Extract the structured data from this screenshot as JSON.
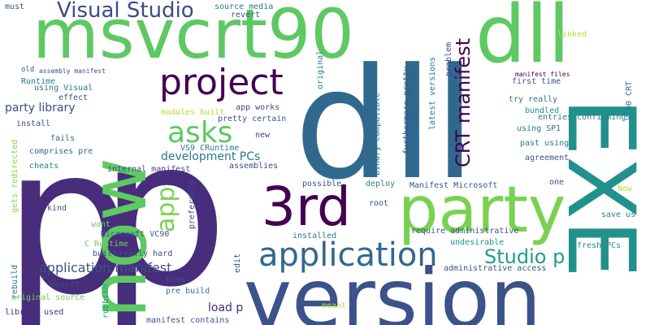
{
  "words": [
    {
      "text": "p",
      "color": "#472d7b"
    },
    {
      "text": "p",
      "color": "#472d7b"
    },
    {
      "text": "dll",
      "color": "#31688e"
    },
    {
      "text": "dll",
      "color": "#5ec962"
    },
    {
      "text": "version",
      "color": "#3b528b"
    },
    {
      "text": "msvcrt90",
      "color": "#5ec962"
    },
    {
      "text": "EXE",
      "color": "#21918c"
    },
    {
      "text": "party",
      "color": "#7ad151"
    },
    {
      "text": "now",
      "color": "#5ec962"
    },
    {
      "text": "project",
      "color": "#440154"
    },
    {
      "text": "3rd",
      "color": "#440154"
    },
    {
      "text": "application",
      "color": "#31688e"
    },
    {
      "text": "CRT manifest",
      "color": "#440154"
    },
    {
      "text": "Visual Studio",
      "color": "#3e4a89"
    },
    {
      "text": "asks",
      "color": "#5ec962"
    },
    {
      "text": "app",
      "color": "#7ad151"
    },
    {
      "text": "Studio p",
      "color": "#1f9e89"
    },
    {
      "text": "application manifest",
      "color": "#3b528b"
    },
    {
      "text": "development PCs",
      "color": "#2a788e"
    },
    {
      "text": "party library",
      "color": "#3e4a89"
    },
    {
      "text": "load p",
      "color": "#482878"
    },
    {
      "text": "must",
      "color": "#3b528b"
    },
    {
      "text": "Runtime",
      "color": "#2a788e"
    },
    {
      "text": "using Visual",
      "color": "#2a788e"
    },
    {
      "text": "effect",
      "color": "#3b528b"
    },
    {
      "text": "install",
      "color": "#3b528b"
    },
    {
      "text": "fails",
      "color": "#31688e"
    },
    {
      "text": "comprises pre",
      "color": "#31688e"
    },
    {
      "text": "cheats",
      "color": "#26828e"
    },
    {
      "text": "kind",
      "color": "#3b528b"
    },
    {
      "text": "want",
      "color": "#6ece58"
    },
    {
      "text": "rebuild",
      "color": "#2a788e"
    },
    {
      "text": "msvcrt",
      "color": "#3e4a89"
    },
    {
      "text": "original source",
      "color": "#6ece58"
    },
    {
      "text": "library used",
      "color": "#46327e"
    },
    {
      "text": "gets redirected",
      "color": "#86d549"
    },
    {
      "text": "old",
      "color": "#3b528b"
    },
    {
      "text": "assembly manifest",
      "color": "#3e4a89"
    },
    {
      "text": "source media",
      "color": "#2a788e"
    },
    {
      "text": "revert",
      "color": "#3b528b"
    },
    {
      "text": "original",
      "color": "#26828e"
    },
    {
      "text": "modules built",
      "color": "#b5de2b"
    },
    {
      "text": "app works",
      "color": "#3e4a89"
    },
    {
      "text": "pretty certain",
      "color": "#3b528b"
    },
    {
      "text": "new",
      "color": "#3e4a89"
    },
    {
      "text": "VS9 CRuntime",
      "color": "#2a788e"
    },
    {
      "text": "assemblies",
      "color": "#3e4a89"
    },
    {
      "text": "internal manifest",
      "color": "#3e4a89"
    },
    {
      "text": "Microsoft VC90",
      "color": "#3b528b"
    },
    {
      "text": "C Runtime",
      "color": "#6ece58"
    },
    {
      "text": "built",
      "color": "#3b528b"
    },
    {
      "text": "really hard",
      "color": "#3b528b"
    },
    {
      "text": "preferable",
      "color": "#3e4a89"
    },
    {
      "text": "rubbish",
      "color": "#1f9e89"
    },
    {
      "text": "edit",
      "color": "#3b528b"
    },
    {
      "text": "time",
      "color": "#3b528b"
    },
    {
      "text": "pre build",
      "color": "#2a788e"
    },
    {
      "text": "manifest contains",
      "color": "#3b528b"
    },
    {
      "text": "meant",
      "color": "#b5de2b"
    },
    {
      "text": "furthermore pretty",
      "color": "#3b528b"
    },
    {
      "text": "binary compatible",
      "color": "#2a788e"
    },
    {
      "text": "latest versions",
      "color": "#2a788e"
    },
    {
      "text": "problem",
      "color": "#3e4a89"
    },
    {
      "text": "save us",
      "color": "#26828e"
    },
    {
      "text": "linked",
      "color": "#b5de2b"
    },
    {
      "text": "manifest files",
      "color": "#440154"
    },
    {
      "text": "first time",
      "color": "#3b528b"
    },
    {
      "text": "try really",
      "color": "#2a788e"
    },
    {
      "text": "bundled",
      "color": "#21918c"
    },
    {
      "text": "entries confirming",
      "color": "#2a788e"
    },
    {
      "text": "using SP1",
      "color": "#2a788e"
    },
    {
      "text": "past using",
      "color": "#2a788e"
    },
    {
      "text": "agreement",
      "color": "#3b528b"
    },
    {
      "text": "VC90 CRT",
      "color": "#2a788e"
    },
    {
      "text": "possible",
      "color": "#3b528b"
    },
    {
      "text": "deploy",
      "color": "#26828e"
    },
    {
      "text": "Manifest Microsoft",
      "color": "#3b528b"
    },
    {
      "text": "one",
      "color": "#3b528b"
    },
    {
      "text": "Now",
      "color": "#b5de2b"
    },
    {
      "text": "root",
      "color": "#3b528b"
    },
    {
      "text": "installed",
      "color": "#2a788e"
    },
    {
      "text": "require administrative",
      "color": "#3b528b"
    },
    {
      "text": "undesirable",
      "color": "#21918c"
    },
    {
      "text": "fresh PCs",
      "color": "#21918c"
    },
    {
      "text": "administrative access",
      "color": "#3b528b"
    }
  ]
}
